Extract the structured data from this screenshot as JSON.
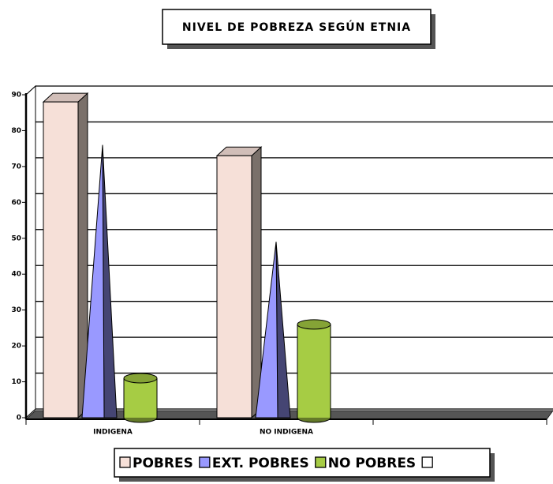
{
  "chart_data": {
    "type": "bar",
    "title": "NIVEL DE POBREZA SEGÚN ETNIA",
    "categories": [
      "INDIGENA",
      "NO INDIGENA",
      null
    ],
    "series": [
      {
        "name": "POBRES",
        "color": "#f6e0d8",
        "shape": "box",
        "values": [
          88,
          73,
          null
        ]
      },
      {
        "name": "EXT. POBRES",
        "color": "#9999ff",
        "shape": "pyramid",
        "values": [
          76,
          49,
          null
        ]
      },
      {
        "name": "NO POBRES",
        "color": "#a6cc44",
        "shape": "cylinder",
        "values": [
          11,
          26,
          null
        ]
      },
      {
        "name": null,
        "color": "#ffffff",
        "shape": "box",
        "values": [
          null,
          null,
          null
        ]
      }
    ],
    "ylim": [
      0,
      90
    ],
    "yticks": [
      0,
      10,
      20,
      30,
      40,
      50,
      60,
      70,
      80,
      90
    ],
    "grid": true
  }
}
